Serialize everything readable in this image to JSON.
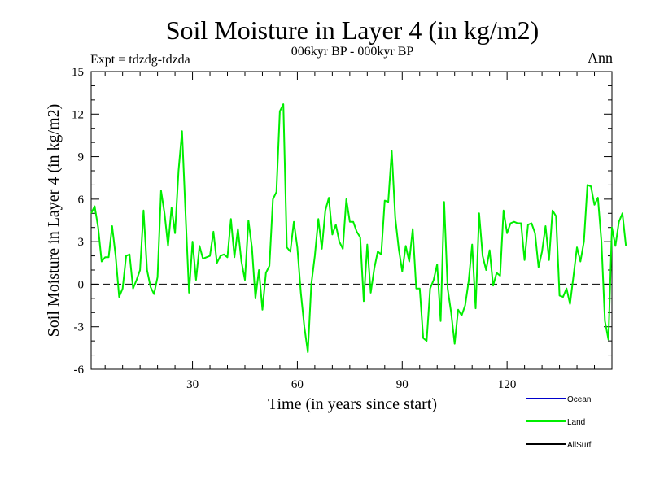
{
  "chart_data": {
    "type": "line",
    "title": "Soil Moisture in Layer 4 (in kg/m2)",
    "subtitle": "006kyr BP - 000kyr BP",
    "expt_label": "Expt = tdzdg-tdzda",
    "season_label": "Ann",
    "xlabel": "Time (in years since start)",
    "ylabel": "Soil Moisture in Layer 4 (in kg/m2)",
    "xlim": [
      1,
      150
    ],
    "ylim": [
      -6,
      15
    ],
    "xticks_major": [
      30,
      60,
      90,
      120
    ],
    "xtick_labels": [
      "30",
      "60",
      "90",
      "120"
    ],
    "yticks_major": [
      -6,
      -3,
      0,
      3,
      6,
      9,
      12,
      15
    ],
    "ytick_labels": [
      "-6",
      "-3",
      "0",
      "3",
      "6",
      "9",
      "12",
      "15"
    ],
    "zero_line": "dashed",
    "legend_position": "bottom-right",
    "series": [
      {
        "name": "Ocean",
        "color": "#0000cc",
        "values": []
      },
      {
        "name": "Land",
        "color": "#00ee00",
        "x_start": 1,
        "values": [
          5.0,
          5.5,
          4.0,
          1.6,
          1.9,
          1.9,
          4.1,
          2.0,
          -0.9,
          -0.3,
          2.0,
          2.1,
          -0.3,
          0.3,
          1.0,
          5.2,
          1.0,
          -0.2,
          -0.7,
          0.5,
          6.6,
          5.0,
          2.7,
          5.4,
          3.6,
          8.0,
          10.8,
          5.0,
          -0.6,
          3.0,
          0.3,
          2.7,
          1.8,
          1.9,
          2.0,
          3.7,
          1.5,
          2.0,
          2.1,
          1.9,
          4.6,
          1.9,
          3.9,
          1.6,
          0.3,
          4.5,
          2.6,
          -1.0,
          1.0,
          -1.8,
          0.8,
          1.3,
          6.0,
          6.5,
          12.2,
          12.7,
          2.6,
          2.3,
          4.4,
          2.6,
          -0.6,
          -3.0,
          -4.8,
          0.0,
          2.0,
          4.6,
          2.5,
          5.2,
          6.1,
          3.5,
          4.2,
          3.0,
          2.5,
          6.0,
          4.4,
          4.4,
          3.7,
          3.3,
          -1.2,
          2.8,
          -0.6,
          1.1,
          2.3,
          2.1,
          5.9,
          5.8,
          9.4,
          4.7,
          2.5,
          0.9,
          2.7,
          1.6,
          3.9,
          -0.3,
          -0.3,
          -3.8,
          -4.0,
          -0.3,
          0.3,
          1.4,
          -2.6,
          5.8,
          -0.3,
          -2.0,
          -4.2,
          -1.8,
          -2.2,
          -1.5,
          0.2,
          2.8,
          -1.7,
          5.0,
          2.0,
          1.0,
          2.4,
          -0.1,
          0.8,
          0.6,
          5.2,
          3.6,
          4.3,
          4.4,
          4.3,
          4.3,
          1.7,
          4.2,
          4.3,
          3.6,
          1.2,
          2.3,
          4.1,
          1.7,
          5.2,
          4.8,
          -0.8,
          -0.9,
          -0.3,
          -1.4,
          0.6,
          2.6,
          1.6,
          3.0,
          7.0,
          6.9,
          5.6,
          6.1,
          3.0,
          -2.6,
          -3.9,
          4.0,
          2.7,
          4.4,
          5.0,
          2.7
        ]
      },
      {
        "name": "AllSurf",
        "color": "#000000",
        "values": []
      }
    ]
  }
}
